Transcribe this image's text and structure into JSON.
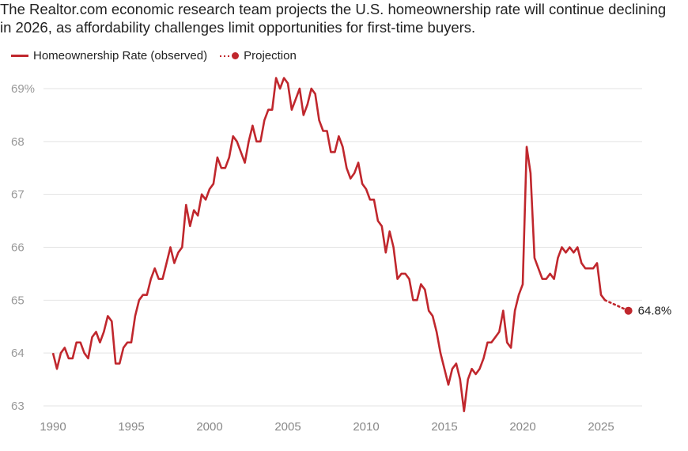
{
  "title": "The Realtor.com economic research team projects the U.S. homeownership rate will continue declining in 2026, as affordability challenges limit opportunities for first-time buyers.",
  "legend": {
    "observed": "Homeownership Rate (observed)",
    "projection": "Projection"
  },
  "colors": {
    "series": "#c0272d",
    "grid": "#e3e3e3",
    "tick": "#999999"
  },
  "chart_data": {
    "type": "line",
    "title": "The Realtor.com economic research team projects the U.S. homeownership rate will continue declining in 2026, as affordability challenges limit opportunities for first-time buyers.",
    "xlabel": "",
    "ylabel": "",
    "xlim": [
      1990,
      2027
    ],
    "ylim": [
      63,
      69
    ],
    "grid": "horizontal",
    "legend_placement": "top-left",
    "y_ticks": [
      "69%",
      "68",
      "67",
      "66",
      "65",
      "64",
      "63"
    ],
    "y_tick_values": [
      69,
      68,
      67,
      66,
      65,
      64,
      63
    ],
    "x_ticks": [
      "1990",
      "1995",
      "2000",
      "2005",
      "2010",
      "2015",
      "2020",
      "2025"
    ],
    "x_tick_values": [
      1990,
      1995,
      2000,
      2005,
      2010,
      2015,
      2020,
      2025
    ],
    "series": [
      {
        "name": "Homeownership Rate (observed)",
        "style": "solid",
        "start": 1990,
        "frequency": "quarterly",
        "values": [
          64.0,
          63.7,
          64.0,
          64.1,
          63.9,
          63.9,
          64.2,
          64.2,
          64.0,
          63.9,
          64.3,
          64.4,
          64.2,
          64.4,
          64.7,
          64.6,
          63.8,
          63.8,
          64.1,
          64.2,
          64.2,
          64.7,
          65.0,
          65.1,
          65.1,
          65.4,
          65.6,
          65.4,
          65.4,
          65.7,
          66.0,
          65.7,
          65.9,
          66.0,
          66.8,
          66.4,
          66.7,
          66.6,
          67.0,
          66.9,
          67.1,
          67.2,
          67.7,
          67.5,
          67.5,
          67.7,
          68.1,
          68.0,
          67.8,
          67.6,
          68.0,
          68.3,
          68.0,
          68.0,
          68.4,
          68.6,
          68.6,
          69.2,
          69.0,
          69.2,
          69.1,
          68.6,
          68.8,
          69.0,
          68.5,
          68.7,
          69.0,
          68.9,
          68.4,
          68.2,
          68.2,
          67.8,
          67.8,
          68.1,
          67.9,
          67.5,
          67.3,
          67.4,
          67.6,
          67.2,
          67.1,
          66.9,
          66.9,
          66.5,
          66.4,
          65.9,
          66.3,
          66.0,
          65.4,
          65.5,
          65.5,
          65.4,
          65.0,
          65.0,
          65.3,
          65.2,
          64.8,
          64.7,
          64.4,
          64.0,
          63.7,
          63.4,
          63.7,
          63.8,
          63.5,
          62.9,
          63.5,
          63.7,
          63.6,
          63.7,
          63.9,
          64.2,
          64.2,
          64.3,
          64.4,
          64.8,
          64.2,
          64.1,
          64.8,
          65.1,
          65.3,
          67.9,
          67.4,
          65.8,
          65.6,
          65.4,
          65.4,
          65.5,
          65.4,
          65.8,
          66.0,
          65.9,
          66.0,
          65.9,
          66.0,
          65.7,
          65.6,
          65.6,
          65.6,
          65.7,
          65.1,
          65.0
        ]
      },
      {
        "name": "Projection",
        "style": "dotted",
        "x": [
          2025.25,
          2026.75
        ],
        "values": [
          65.0,
          64.8
        ],
        "end_label": "64.8%"
      }
    ]
  }
}
